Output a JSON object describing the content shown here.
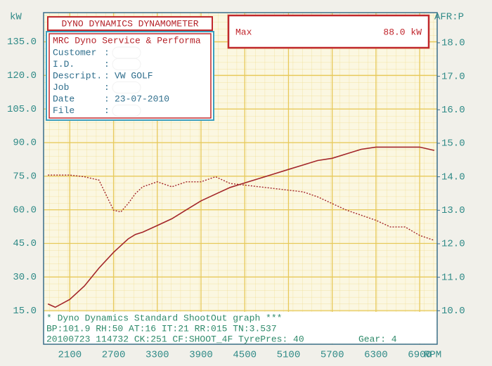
{
  "chart_data": {
    "type": "line",
    "header": "DYNO DYNAMICS DYNAMOMETER",
    "company": "MRC Dyno Service & Performa",
    "separator": ":",
    "fields": [
      {
        "label": "Customer"
      },
      {
        "label": "I.D."
      },
      {
        "label": "Descript.",
        "value": "VW GOLF"
      },
      {
        "label": "Job"
      },
      {
        "label": "Date",
        "value": "23-07-2010"
      },
      {
        "label": "File"
      }
    ],
    "max_label": "Max",
    "max_value": "88.0 kW",
    "footer": [
      "* Dyno Dynamics Standard ShootOut graph ***",
      "BP:101.9 RH:50 AT:16 IT:21 RR:015 TN:3.537",
      "20100723 114732 CK:251 CF:SHOOT_4F TyrePres: 40"
    ],
    "gear": "Gear: 4",
    "x_label": "RPM",
    "y_label": "kW",
    "y2_label": "AFR:P",
    "x": [
      1800,
      1900,
      2100,
      2300,
      2500,
      2700,
      2800,
      2900,
      3000,
      3100,
      3300,
      3500,
      3700,
      3900,
      4100,
      4300,
      4500,
      4700,
      4900,
      5100,
      5300,
      5500,
      5700,
      5900,
      6100,
      6300,
      6500,
      6700,
      6900,
      7100
    ],
    "series": [
      {
        "color": "#a3262a",
        "dash": false,
        "values": [
          18,
          16.5,
          20,
          26,
          34,
          41,
          44,
          47,
          49,
          50,
          53,
          56,
          60,
          64,
          67,
          70,
          72,
          74,
          76,
          78,
          80,
          82,
          83,
          85,
          87,
          88,
          88,
          88,
          88,
          86.5
        ]
      },
      {
        "color": "#a3262a",
        "dash": true,
        "axis": "y2",
        "values": [
          14.05,
          14.05,
          14.05,
          14.0,
          13.9,
          13.0,
          12.95,
          13.2,
          13.5,
          13.7,
          13.85,
          13.7,
          13.85,
          13.85,
          14.0,
          13.8,
          13.75,
          13.7,
          13.65,
          13.6,
          13.55,
          13.4,
          13.2,
          13.0,
          12.85,
          12.7,
          12.5,
          12.5,
          12.25,
          12.1
        ]
      }
    ],
    "xlim": [
      1740,
      7140
    ],
    "xticks": [
      2100,
      2700,
      3300,
      3900,
      4500,
      5100,
      5700,
      6300,
      6900
    ],
    "ylim": [
      0,
      148
    ],
    "yticks": [
      {
        "value": 15,
        "label": "15.0"
      },
      {
        "value": 30,
        "label": "30.0"
      },
      {
        "value": 45,
        "label": "45.0"
      },
      {
        "value": 60,
        "label": "60.0"
      },
      {
        "value": 75,
        "label": "75.0"
      },
      {
        "value": 90,
        "label": "90.0"
      },
      {
        "value": 105,
        "label": "105.0"
      },
      {
        "value": 120,
        "label": "120.0"
      },
      {
        "value": 135,
        "label": "135.0"
      }
    ],
    "y2lim": [
      9,
      18.9
    ],
    "y2ticks": [
      {
        "value": 10,
        "label": "10.0"
      },
      {
        "value": 11,
        "label": "11.0"
      },
      {
        "value": 12,
        "label": "12.0"
      },
      {
        "value": 13,
        "label": "13.0"
      },
      {
        "value": 14,
        "label": "14.0"
      },
      {
        "value": 15,
        "label": "15.0"
      },
      {
        "value": 16,
        "label": "16.0"
      },
      {
        "value": 17,
        "label": "17.0"
      },
      {
        "value": 18,
        "label": "18.0"
      }
    ],
    "grid": true
  }
}
